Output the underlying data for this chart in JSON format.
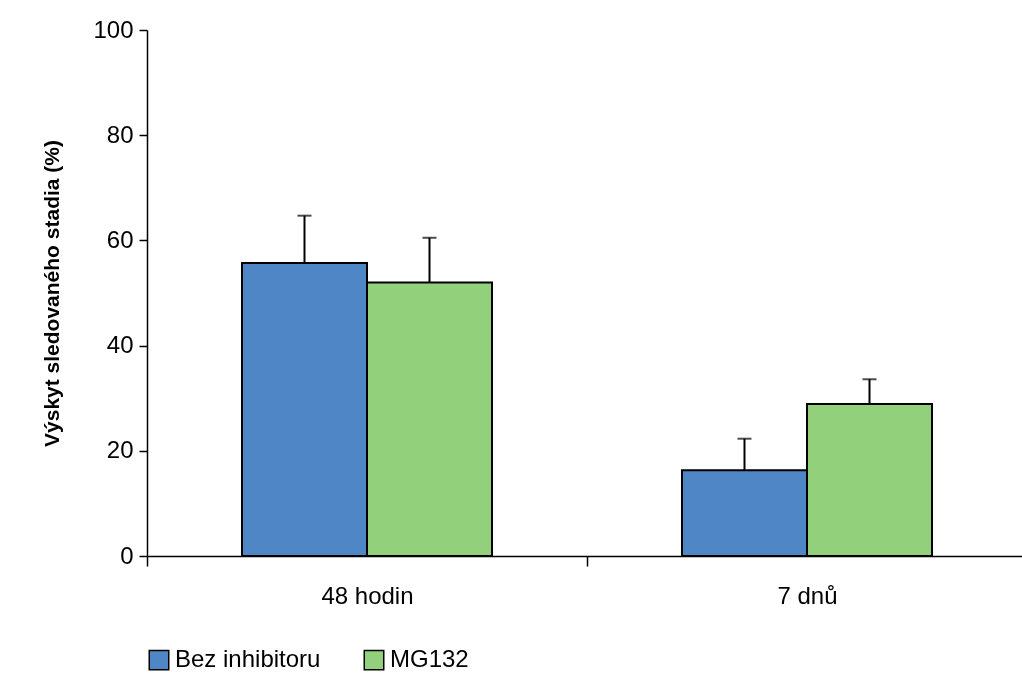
{
  "chart_data": {
    "type": "bar",
    "ylabel": "Výskyt sledovaného stadia (%)",
    "categories": [
      "48 hodin",
      "7 dnů"
    ],
    "series": [
      {
        "name": "Bez inhibitoru",
        "color": "#4f86c6",
        "values": [
          55.7,
          16.3
        ],
        "errors": [
          9,
          6
        ]
      },
      {
        "name": "MG132",
        "color": "#92d07b",
        "values": [
          52,
          28.9
        ],
        "errors": [
          8.5,
          4.7
        ]
      }
    ],
    "ylim": [
      0,
      100
    ],
    "yticks": [
      0,
      20,
      40,
      60,
      80,
      100
    ],
    "grid": false,
    "legend": "bottom"
  }
}
